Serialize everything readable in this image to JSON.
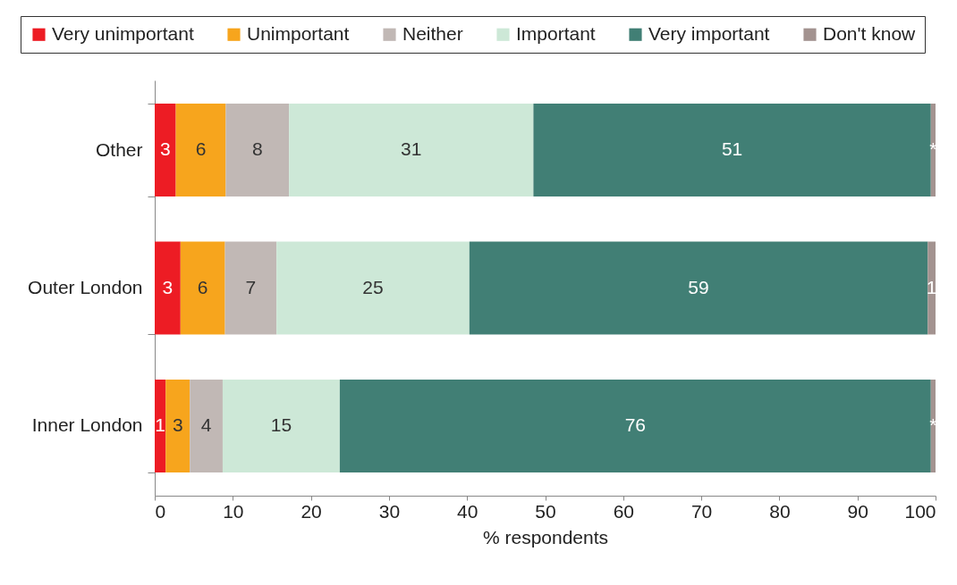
{
  "chart_data": {
    "type": "bar",
    "orientation": "horizontal",
    "stacked": true,
    "categories": [
      "Other",
      "Outer London",
      "Inner London"
    ],
    "series": [
      {
        "name": "Very unimportant",
        "color": "#ed1c24",
        "values": [
          2.7,
          3.3,
          1.4
        ],
        "value_labels": [
          "3",
          "3",
          "1"
        ]
      },
      {
        "name": "Unimportant",
        "color": "#f7a51d",
        "values": [
          6.4,
          5.7,
          3.1
        ],
        "value_labels": [
          "6",
          "6",
          "3"
        ]
      },
      {
        "name": "Neither",
        "color": "#c1b8b5",
        "values": [
          8.1,
          6.6,
          4.2
        ],
        "value_labels": [
          "8",
          "7",
          "4"
        ]
      },
      {
        "name": "Important",
        "color": "#cde8d7",
        "values": [
          31.3,
          24.7,
          15.0
        ],
        "value_labels": [
          "31",
          "25",
          "15"
        ]
      },
      {
        "name": "Very important",
        "color": "#417f75",
        "values": [
          50.9,
          58.7,
          75.7
        ],
        "value_labels": [
          "51",
          "59",
          "76"
        ]
      },
      {
        "name": "Don't know",
        "color": "#a39390",
        "values": [
          0.6,
          1.0,
          0.6
        ],
        "value_labels": [
          "*",
          "1",
          "*"
        ]
      }
    ],
    "xlim": [
      0,
      100
    ],
    "xticks": [
      0,
      10,
      20,
      30,
      40,
      50,
      60,
      70,
      80,
      90,
      100
    ],
    "xlabel": "% respondents",
    "legend": "top",
    "grid": false
  }
}
